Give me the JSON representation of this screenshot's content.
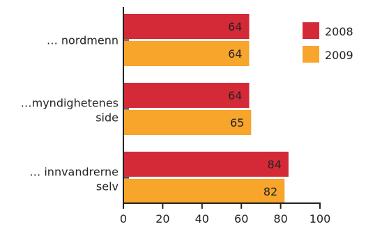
{
  "chart_data": {
    "type": "bar",
    "orientation": "horizontal",
    "categories": [
      [
        "… nordmenn"
      ],
      [
        "…myndighetenes",
        "side"
      ],
      [
        "… innvandrerne",
        "selv"
      ]
    ],
    "series": [
      {
        "name": "2008",
        "values": [
          64,
          64,
          84
        ],
        "color": "#d42a38"
      },
      {
        "name": "2009",
        "values": [
          64,
          65,
          82
        ],
        "color": "#f7a52b"
      }
    ],
    "data_labels": true,
    "x_ticks": [
      "0",
      "20",
      "40",
      "60",
      "80",
      "100"
    ],
    "xlim": [
      0,
      100
    ],
    "legend_position": "top-right",
    "grid": false
  }
}
